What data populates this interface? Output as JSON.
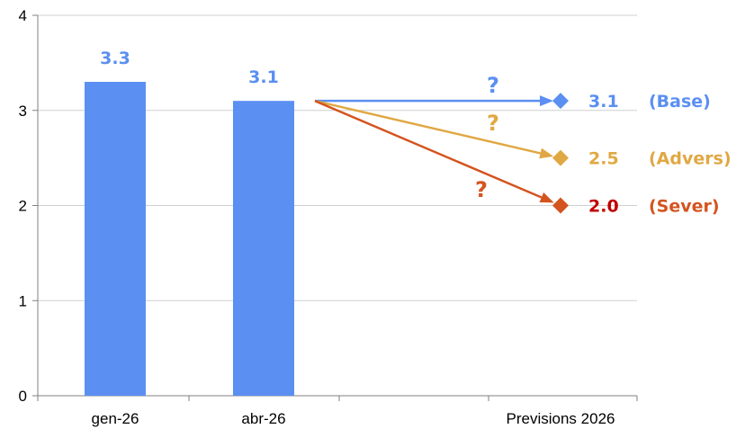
{
  "chart_data": {
    "type": "bar",
    "ylim": [
      0,
      4
    ],
    "yticks": [
      "0",
      "1",
      "2",
      "3",
      "4"
    ],
    "categories": [
      "gen-26",
      "abr-26",
      "Previsions 2026"
    ],
    "bars": [
      {
        "category": "gen-26",
        "value": 3.3,
        "label": "3.3"
      },
      {
        "category": "abr-26",
        "value": 3.1,
        "label": "3.1"
      }
    ],
    "bar_color": "#5b8ff2",
    "scenarios": [
      {
        "name": "(Base)",
        "value": 3.1,
        "label": "3.1",
        "mark": "?",
        "color": "#5b8ff2",
        "value_color": "#5b8ff2"
      },
      {
        "name": "(Advers)",
        "value": 2.5,
        "label": "2.5",
        "mark": "?",
        "color": "#e0a843",
        "value_color": "#e0a843"
      },
      {
        "name": "(Sever)",
        "value": 2.0,
        "label": "2.0",
        "mark": "?",
        "color": "#d4541f",
        "value_color": "#c00000"
      }
    ]
  }
}
